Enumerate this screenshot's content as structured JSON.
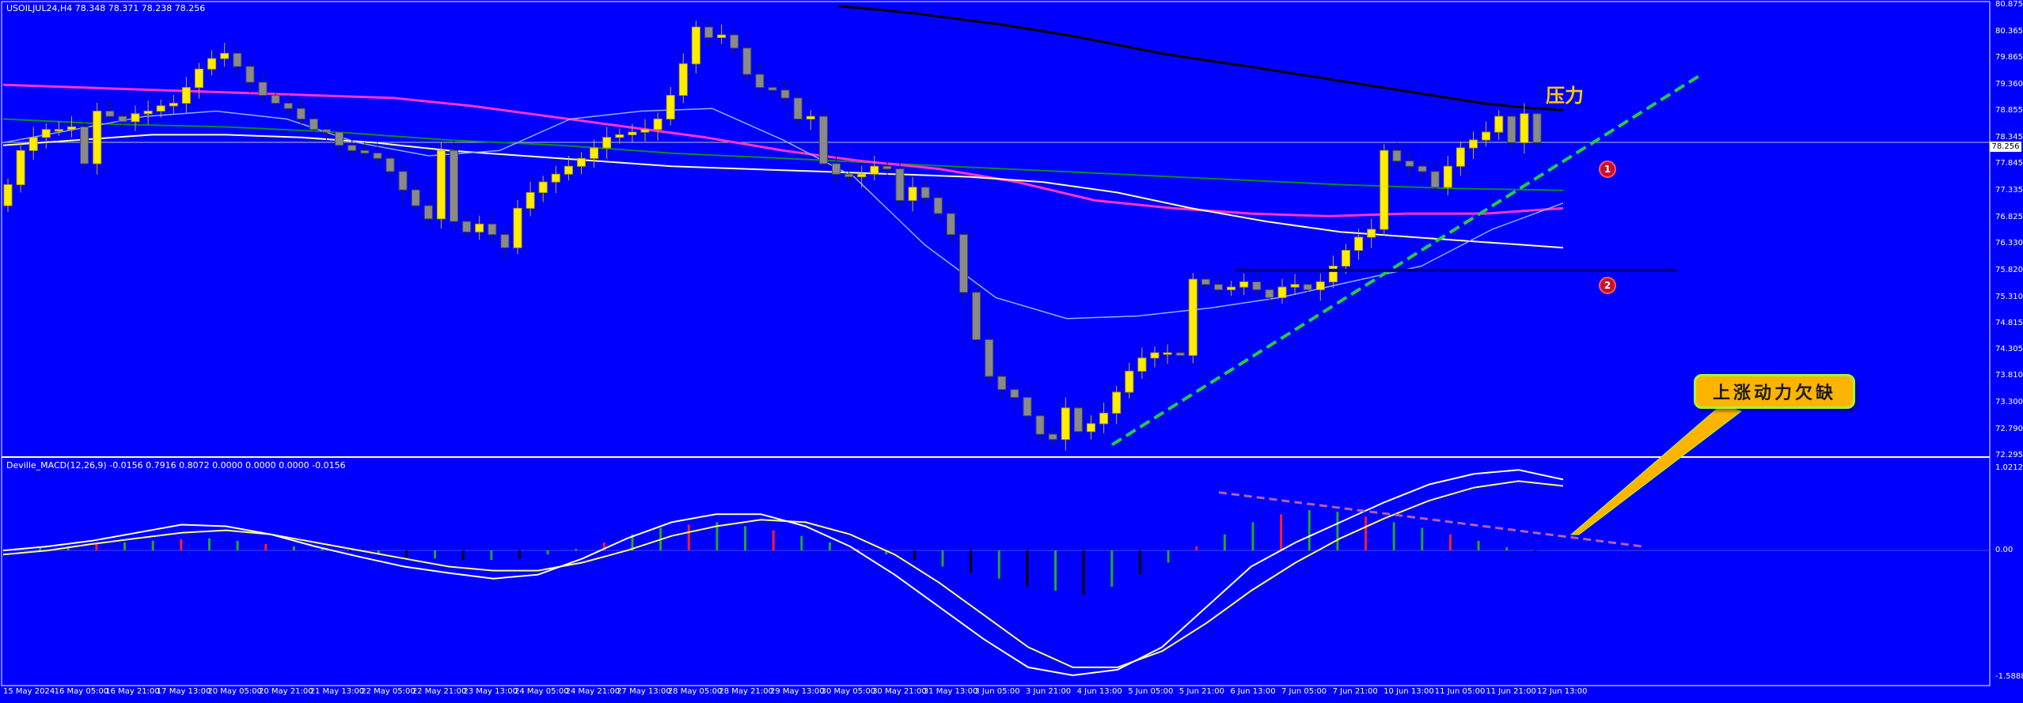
{
  "window": {
    "symbol_title": "USOILJUL24,H4  78.348 78.371 78.238 78.256",
    "macd_title": "Deville_MACD(12,26,9) -0.0156 0.7916 0.8072 0.0000 0.0000 0.0000 -0.0156"
  },
  "annotations": {
    "pressure_label": "压力",
    "callout_text": "上涨动力欠缺",
    "marker_1": "1",
    "marker_2": "2"
  },
  "price_axis": {
    "ticks": [
      "80.875",
      "80.365",
      "79.865",
      "79.360",
      "78.855",
      "78.345",
      "77.845",
      "77.335",
      "76.825",
      "76.330",
      "75.820",
      "75.310",
      "74.815",
      "74.305",
      "73.810",
      "73.300",
      "72.790",
      "72.295"
    ],
    "current_price": "78.256"
  },
  "macd_axis": {
    "ticks": [
      "1.0212",
      "0.00",
      "-1.5888"
    ]
  },
  "time_axis": {
    "ticks": [
      "15 May 2024",
      "16 May 05:00",
      "16 May 21:00",
      "17 May 13:00",
      "20 May 05:00",
      "20 May 21:00",
      "21 May 13:00",
      "22 May 05:00",
      "22 May 21:00",
      "23 May 13:00",
      "24 May 05:00",
      "24 May 21:00",
      "27 May 13:00",
      "28 May 05:00",
      "28 May 21:00",
      "29 May 13:00",
      "30 May 05:00",
      "30 May 21:00",
      "31 May 13:00",
      "3 Jun 05:00",
      "3 Jun 21:00",
      "4 Jun 13:00",
      "5 Jun 05:00",
      "5 Jun 21:00",
      "6 Jun 13:00",
      "7 Jun 05:00",
      "7 Jun 21:00",
      "10 Jun 13:00",
      "11 Jun 05:00",
      "11 Jun 21:00",
      "12 Jun 13:00"
    ]
  },
  "colors": {
    "background": "#0000ff",
    "bull_candle": "#ffee00",
    "bear_candle": "#8a8a8a",
    "ma_black": "#000000",
    "ma_green": "#0d8a22",
    "ma_magenta": "#ff33cc",
    "ma_yellow": "#ffffa0",
    "ma_lightblue": "#8fb0ff",
    "trendline": "#22cc44",
    "macd_line": "#ffffff",
    "signal_line": "#ffff66",
    "hist_up": "#ff2020",
    "hist_down": "#22aa22",
    "divergence": "#b060b0",
    "callout_fill": "#ffb400"
  },
  "chart_data": [
    {
      "type": "candlestick",
      "title": "USOILJUL24,H4",
      "yrange": [
        72.295,
        80.875
      ],
      "last": {
        "open": 78.348,
        "high": 78.371,
        "low": 78.238,
        "close": 78.256
      },
      "closes": [
        77.45,
        78.1,
        78.35,
        78.5,
        78.5,
        78.55,
        77.85,
        78.85,
        78.75,
        78.65,
        78.8,
        78.85,
        78.95,
        79.0,
        79.3,
        79.65,
        79.85,
        79.95,
        79.7,
        79.4,
        79.15,
        79.0,
        78.9,
        78.7,
        78.5,
        78.45,
        78.2,
        78.1,
        78.05,
        77.95,
        77.7,
        77.35,
        77.05,
        76.8,
        78.1,
        76.75,
        76.55,
        76.7,
        76.5,
        76.25,
        77.0,
        77.3,
        77.5,
        77.65,
        77.8,
        77.95,
        78.15,
        78.35,
        78.4,
        78.45,
        78.5,
        78.7,
        79.15,
        79.75,
        80.45,
        80.25,
        80.3,
        80.05,
        79.55,
        79.3,
        79.25,
        79.1,
        78.7,
        78.75,
        77.85,
        77.65,
        77.6,
        77.65,
        77.8,
        77.75,
        77.15,
        77.4,
        77.2,
        76.9,
        76.5,
        75.4,
        74.5,
        73.8,
        73.55,
        73.4,
        73.05,
        72.7,
        72.6,
        73.2,
        72.75,
        72.9,
        73.1,
        73.5,
        73.9,
        74.15,
        74.25,
        74.25,
        74.2,
        75.65,
        75.55,
        75.45,
        75.5,
        75.6,
        75.45,
        75.3,
        75.5,
        75.55,
        75.45,
        75.6,
        75.9,
        76.2,
        76.45,
        76.6,
        78.1,
        77.9,
        77.8,
        77.7,
        77.4,
        77.8,
        78.15,
        78.3,
        78.45,
        78.75,
        78.25,
        78.8,
        78.25
      ],
      "series": [
        {
          "name": "MA-black",
          "values": [
            80.85,
            80.78,
            80.7,
            80.6,
            80.5,
            80.38,
            80.25,
            80.1,
            79.95,
            79.83,
            79.72,
            79.6,
            79.48,
            79.36,
            79.24,
            79.12,
            79.0,
            78.92,
            78.87
          ]
        },
        {
          "name": "MA-green",
          "values": [
            78.7,
            78.6,
            78.55,
            78.45,
            78.3,
            78.2,
            78.05,
            77.95,
            77.85,
            77.75,
            77.65,
            77.55,
            77.45,
            77.38,
            77.34
          ]
        },
        {
          "name": "MA-magenta",
          "values": [
            79.35,
            79.3,
            79.25,
            79.2,
            79.15,
            79.1,
            78.95,
            78.75,
            78.55,
            78.35,
            78.1,
            77.9,
            77.75,
            77.5,
            77.15,
            77.0,
            76.9,
            76.85,
            76.9,
            76.9,
            77.0
          ]
        },
        {
          "name": "MA-yellow",
          "values": [
            78.2,
            78.3,
            78.4,
            78.4,
            78.35,
            78.25,
            78.1,
            78.0,
            77.9,
            77.8,
            77.75,
            77.7,
            77.65,
            77.6,
            77.5,
            77.3,
            77.0,
            76.75,
            76.55,
            76.45,
            76.35,
            76.25
          ]
        },
        {
          "name": "MA-lightblue",
          "values": [
            78.25,
            78.5,
            78.75,
            78.85,
            78.7,
            78.25,
            78.0,
            78.1,
            78.7,
            78.85,
            78.9,
            78.3,
            77.6,
            76.3,
            75.3,
            74.9,
            74.95,
            75.1,
            75.3,
            75.6,
            75.9,
            76.6,
            77.1
          ]
        }
      ],
      "horizontal_levels": [
        75.82
      ],
      "trendline": {
        "from": {
          "t": "4 Jun 21:00",
          "price": 72.5
        },
        "to": {
          "t": "13 Jun",
          "price": 79.55
        }
      }
    },
    {
      "type": "bar",
      "title": "Deville_MACD(12,26,9)",
      "yrange": [
        -1.5888,
        1.0212
      ],
      "values": {
        "macd": -0.0156,
        "signal": 0.7916,
        "histogram": -0.0156
      },
      "histogram": [
        0.02,
        0.03,
        0.05,
        0.08,
        0.1,
        0.12,
        0.14,
        0.15,
        0.12,
        0.08,
        0.05,
        0.02,
        -0.02,
        -0.05,
        -0.08,
        -0.1,
        -0.12,
        -0.12,
        -0.1,
        -0.05,
        0.02,
        0.1,
        0.2,
        0.28,
        0.32,
        0.35,
        0.3,
        0.25,
        0.18,
        0.1,
        0.02,
        -0.05,
        -0.12,
        -0.2,
        -0.28,
        -0.35,
        -0.45,
        -0.5,
        -0.55,
        -0.45,
        -0.3,
        -0.15,
        0.05,
        0.2,
        0.35,
        0.45,
        0.5,
        0.48,
        0.42,
        0.35,
        0.28,
        0.2,
        0.12,
        0.04,
        -0.02
      ]
    }
  ]
}
